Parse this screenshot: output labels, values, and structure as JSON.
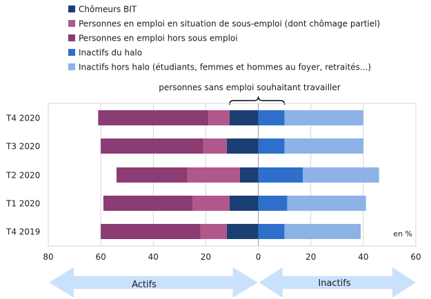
{
  "chart_data": {
    "type": "bar",
    "orientation": "horizontal-diverging",
    "categories": [
      "T4 2020",
      "T3 2020",
      "T2 2020",
      "T1 2020",
      "T4 2019"
    ],
    "xlim": [
      -80,
      60
    ],
    "x_ticks": [
      -80,
      -60,
      -40,
      -20,
      0,
      20,
      40,
      60
    ],
    "x_tick_labels": [
      "80",
      "60",
      "40",
      "20",
      "0",
      "20",
      "40",
      "60"
    ],
    "unit_label": "en %",
    "grid": true,
    "legend_position": "top",
    "series": [
      {
        "name": "Chômeurs BIT",
        "side": "left",
        "color": "#1b3f73",
        "values": [
          11,
          12,
          7,
          11,
          12
        ]
      },
      {
        "name": "Personnes en emploi en situation de sous-emploi (dont chômage partiel)",
        "side": "left",
        "color": "#b0588b",
        "values": [
          8,
          9,
          20,
          14,
          10
        ]
      },
      {
        "name": "Personnes en emploi hors sous emploi",
        "side": "left",
        "color": "#8b3c72",
        "values": [
          42,
          39,
          27,
          34,
          38
        ]
      },
      {
        "name": "Inactifs du halo",
        "side": "right",
        "color": "#2f6fcc",
        "values": [
          10,
          10,
          17,
          11,
          10
        ]
      },
      {
        "name": "Inactifs hors halo (étudiants, femmes et hommes au foyer, retraités...)",
        "side": "right",
        "color": "#8db2e6",
        "values": [
          30,
          30,
          29,
          30,
          29
        ]
      }
    ],
    "annotations": {
      "brace_label": "personnes sans emploi souhaitant travailler"
    },
    "arrows": {
      "left_label": "Actifs",
      "right_label": "Inactifs"
    }
  }
}
